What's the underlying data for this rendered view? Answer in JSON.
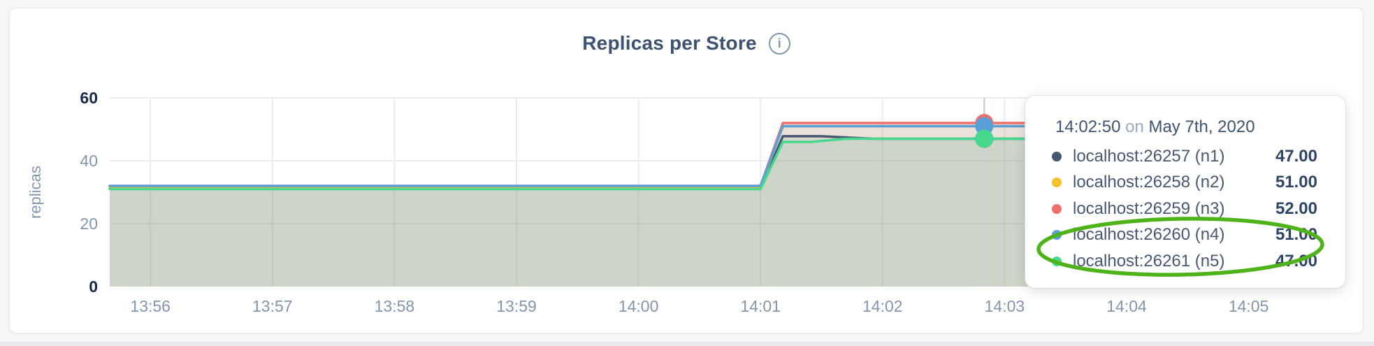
{
  "header": {
    "title": "Replicas per Store",
    "info_glyph": "i"
  },
  "tooltip": {
    "time": "14:02:50",
    "conjunction": "on",
    "date": "May 7th, 2020",
    "rows": [
      {
        "label": "localhost:26257 (n1)",
        "value": "47.00",
        "color": "#475872"
      },
      {
        "label": "localhost:26258 (n2)",
        "value": "51.00",
        "color": "#f8c32a"
      },
      {
        "label": "localhost:26259 (n3)",
        "value": "52.00",
        "color": "#ee6f6b"
      },
      {
        "label": "localhost:26260 (n4)",
        "value": "51.00",
        "color": "#59a0d9"
      },
      {
        "label": "localhost:26261 (n5)",
        "value": "47.00",
        "color": "#46d98e"
      }
    ]
  },
  "annotation": {
    "shape": "hand-drawn-ellipse",
    "color": "#4eb319",
    "rows_highlighted": [
      "localhost:26260 (n4)",
      "localhost:26261 (n5)"
    ]
  },
  "chart_data": {
    "type": "area",
    "title": "Replicas per Store",
    "ylabel": "replicas",
    "ylim": [
      0,
      60
    ],
    "y_ticks": [
      0,
      20,
      40,
      60
    ],
    "y_ticks_emphasized": [
      0,
      60
    ],
    "x_ticks": [
      "13:56",
      "13:57",
      "13:58",
      "13:59",
      "14:00",
      "14:01",
      "14:02",
      "14:03",
      "14:04",
      "14:05"
    ],
    "x_range": [
      "13:55:40",
      "14:05:40"
    ],
    "grid": true,
    "legend_position": "tooltip",
    "hover_time": "14:02:50",
    "fill_opacity": 0.1,
    "colors": {
      "grid": "#e9edf2",
      "axis_text": "#8296ad",
      "axis_text_strong": "#16294b",
      "hover_line": "#ccd1d6"
    },
    "series": [
      {
        "name": "localhost:26257 (n1)",
        "color": "#475872",
        "hover_value": 47,
        "points": [
          [
            "13:55:40",
            31.2
          ],
          [
            "14:01:00",
            31.2
          ],
          [
            "14:01:11",
            47.8
          ],
          [
            "14:01:30",
            47.8
          ],
          [
            "14:01:55",
            47
          ],
          [
            "14:05:40",
            47
          ]
        ]
      },
      {
        "name": "localhost:26258 (n2)",
        "color": "#f8c32a",
        "hover_value": 51,
        "points": [
          [
            "13:55:40",
            31.6
          ],
          [
            "14:01:00",
            31.6
          ],
          [
            "14:01:11",
            51
          ],
          [
            "14:05:40",
            51
          ]
        ]
      },
      {
        "name": "localhost:26259 (n3)",
        "color": "#ee6f6b",
        "hover_value": 52,
        "points": [
          [
            "13:55:40",
            32
          ],
          [
            "14:01:00",
            32
          ],
          [
            "14:01:11",
            52
          ],
          [
            "14:05:40",
            52
          ]
        ]
      },
      {
        "name": "localhost:26260 (n4)",
        "color": "#59a0d9",
        "hover_value": 51,
        "points": [
          [
            "13:55:40",
            32
          ],
          [
            "14:01:00",
            32
          ],
          [
            "14:01:11",
            51
          ],
          [
            "14:05:40",
            51
          ]
        ]
      },
      {
        "name": "localhost:26261 (n5)",
        "color": "#46d98e",
        "hover_value": 47,
        "points": [
          [
            "13:55:40",
            31
          ],
          [
            "14:01:00",
            31
          ],
          [
            "14:01:11",
            46
          ],
          [
            "14:01:25",
            46
          ],
          [
            "14:01:42",
            47
          ],
          [
            "14:05:40",
            47
          ]
        ]
      }
    ]
  }
}
